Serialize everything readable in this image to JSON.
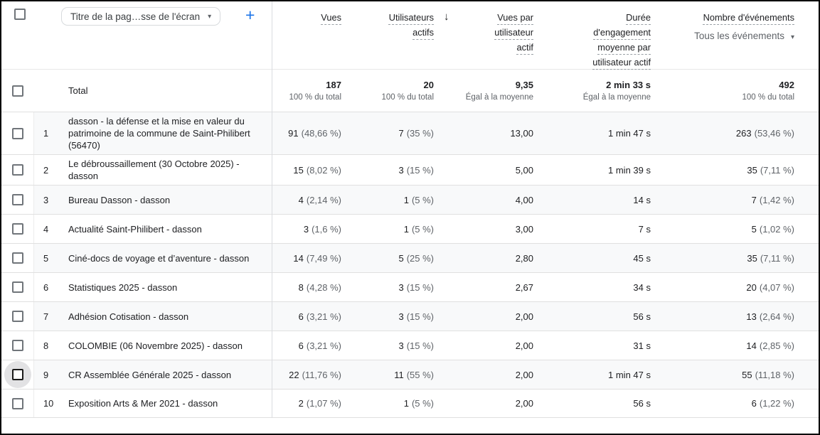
{
  "icons": {
    "caret": "▾",
    "plus": "+",
    "sort_desc": "↓"
  },
  "toolbar": {
    "dimension_selector_label": "Titre de la pag…sse de l'écran"
  },
  "columns": {
    "vues": "Vues",
    "utilisateurs_actifs": "Utilisateurs actifs",
    "vues_par_utilisateur_actif": "Vues par utilisateur actif",
    "duree_engagement": "Durée d'engagement moyenne par utilisateur actif",
    "nombre_evenements": "Nombre d'événements",
    "events_filter": "Tous les événements",
    "sorted_by": "Vues par utilisateur actif",
    "sort_direction": "descending"
  },
  "totals": {
    "label": "Total",
    "vues": "187",
    "vues_sub": "100 % du total",
    "users": "20",
    "users_sub": "100 % du total",
    "vpu": "9,35",
    "vpu_sub": "Égal à la moyenne",
    "duree": "2 min 33 s",
    "duree_sub": "Égal à la moyenne",
    "events": "492",
    "events_sub": "100 % du total"
  },
  "rows": [
    {
      "num": "1",
      "title": "dasson - la défense et la mise en valeur du patrimoine de la commune de Saint-Philibert (56470)",
      "vues": "91",
      "vues_pct": "(48,66 %)",
      "users": "7",
      "users_pct": "(35 %)",
      "vpu": "13,00",
      "duree": "1 min 47 s",
      "events": "263",
      "events_pct": "(53,46 %)",
      "highlighted": false
    },
    {
      "num": "2",
      "title": "Le débroussaillement (30 Octobre 2025) - dasson",
      "vues": "15",
      "vues_pct": "(8,02 %)",
      "users": "3",
      "users_pct": "(15 %)",
      "vpu": "5,00",
      "duree": "1 min 39 s",
      "events": "35",
      "events_pct": "(7,11 %)",
      "highlighted": false
    },
    {
      "num": "3",
      "title": "Bureau Dasson - dasson",
      "vues": "4",
      "vues_pct": "(2,14 %)",
      "users": "1",
      "users_pct": "(5 %)",
      "vpu": "4,00",
      "duree": "14 s",
      "events": "7",
      "events_pct": "(1,42 %)",
      "highlighted": false
    },
    {
      "num": "4",
      "title": "Actualité Saint-Philibert - dasson",
      "vues": "3",
      "vues_pct": "(1,6 %)",
      "users": "1",
      "users_pct": "(5 %)",
      "vpu": "3,00",
      "duree": "7 s",
      "events": "5",
      "events_pct": "(1,02 %)",
      "highlighted": false
    },
    {
      "num": "5",
      "title": "Ciné-docs de voyage et d’aventure - dasson",
      "vues": "14",
      "vues_pct": "(7,49 %)",
      "users": "5",
      "users_pct": "(25 %)",
      "vpu": "2,80",
      "duree": "45 s",
      "events": "35",
      "events_pct": "(7,11 %)",
      "highlighted": false
    },
    {
      "num": "6",
      "title": "Statistiques 2025 - dasson",
      "vues": "8",
      "vues_pct": "(4,28 %)",
      "users": "3",
      "users_pct": "(15 %)",
      "vpu": "2,67",
      "duree": "34 s",
      "events": "20",
      "events_pct": "(4,07 %)",
      "highlighted": false
    },
    {
      "num": "7",
      "title": "Adhésion Cotisation - dasson",
      "vues": "6",
      "vues_pct": "(3,21 %)",
      "users": "3",
      "users_pct": "(15 %)",
      "vpu": "2,00",
      "duree": "56 s",
      "events": "13",
      "events_pct": "(2,64 %)",
      "highlighted": false
    },
    {
      "num": "8",
      "title": "COLOMBIE (06 Novembre 2025) - dasson",
      "vues": "6",
      "vues_pct": "(3,21 %)",
      "users": "3",
      "users_pct": "(15 %)",
      "vpu": "2,00",
      "duree": "31 s",
      "events": "14",
      "events_pct": "(2,85 %)",
      "highlighted": false
    },
    {
      "num": "9",
      "title": "CR Assemblée Générale 2025 - dasson",
      "vues": "22",
      "vues_pct": "(11,76 %)",
      "users": "11",
      "users_pct": "(55 %)",
      "vpu": "2,00",
      "duree": "1 min 47 s",
      "events": "55",
      "events_pct": "(11,18 %)",
      "highlighted": true
    },
    {
      "num": "10",
      "title": "Exposition Arts & Mer 2021 - dasson",
      "vues": "2",
      "vues_pct": "(1,07 %)",
      "users": "1",
      "users_pct": "(5 %)",
      "vpu": "2,00",
      "duree": "56 s",
      "events": "6",
      "events_pct": "(1,22 %)",
      "highlighted": false
    }
  ],
  "colors": {
    "accent_blue": "#1a73e8",
    "stripe": "#f8f9fa",
    "text_primary": "#202124",
    "text_secondary": "#5f6368",
    "divider": "#dadce0"
  }
}
